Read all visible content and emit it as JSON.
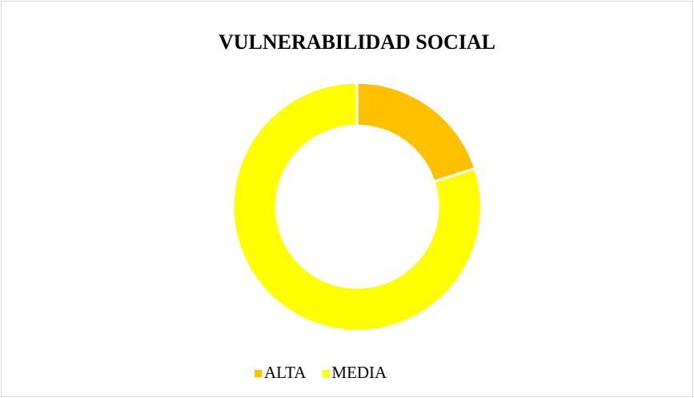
{
  "chart_data": {
    "type": "donut",
    "title": "VULNERABILIDAD SOCIAL",
    "categories": [
      "ALTA",
      "MEDIA"
    ],
    "values": [
      20,
      80
    ],
    "colors": [
      "#ffc000",
      "#ffff00"
    ],
    "legend": "bottom"
  }
}
